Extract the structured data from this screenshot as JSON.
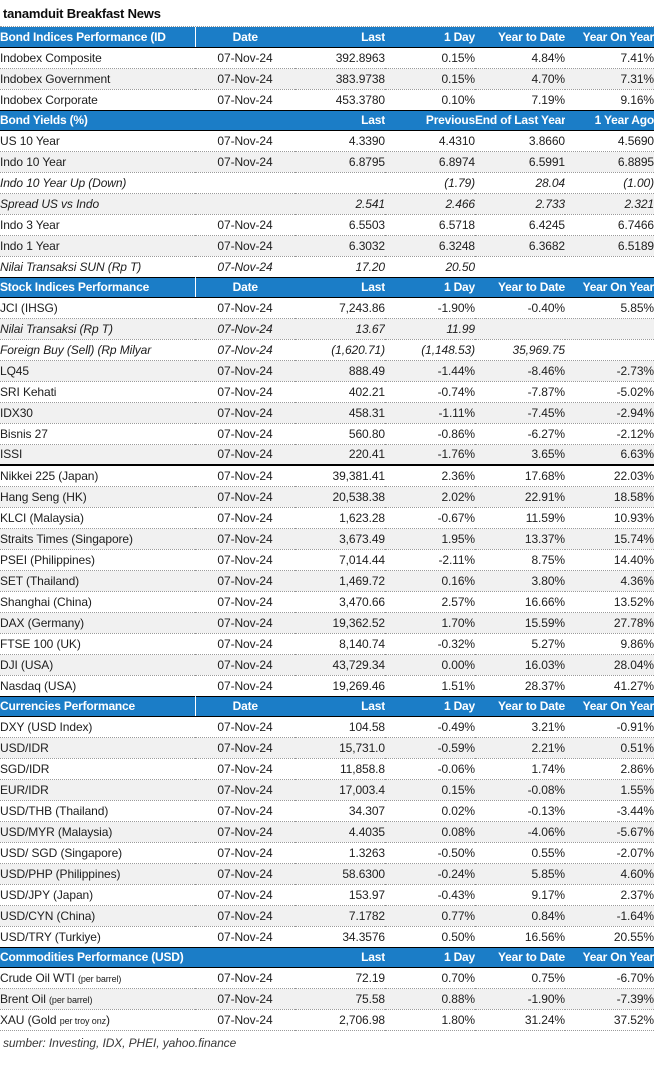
{
  "title": "tanamduit Breakfast News",
  "footer": "sumber: Investing, IDX, PHEI, yahoo.finance",
  "colors": {
    "header_bg": "#1b7dc7",
    "header_text": "#ffffff",
    "stripe": "#f1f1f1",
    "dotted_border": "#9a9a9a",
    "solid_border": "#000000"
  },
  "date_shown": "07-Nov-24",
  "sections": [
    {
      "id": "bond-indices",
      "header": [
        "Bond Indices Performance (ID",
        "Date",
        "Last",
        "1 Day",
        "Year to Date",
        "Year On Year"
      ],
      "rows": [
        {
          "label": "Indobex Composite",
          "cells": [
            "07-Nov-24",
            "392.8963",
            "0.15%",
            "4.84%",
            "7.41%"
          ]
        },
        {
          "label": "Indobex Government",
          "cells": [
            "07-Nov-24",
            "383.9738",
            "0.15%",
            "4.70%",
            "7.31%"
          ]
        },
        {
          "label": "Indobex Corporate",
          "cells": [
            "07-Nov-24",
            "453.3780",
            "0.10%",
            "7.19%",
            "9.16%"
          ]
        }
      ]
    },
    {
      "id": "bond-yields",
      "header": [
        "Bond Yields (%)",
        "",
        "Last",
        "Previous",
        "End of Last Year",
        "1 Year Ago"
      ],
      "rows": [
        {
          "label": "US 10 Year",
          "cells": [
            "07-Nov-24",
            "4.3390",
            "4.4310",
            "3.8660",
            "4.5690"
          ]
        },
        {
          "label": "Indo 10 Year",
          "cells": [
            "07-Nov-24",
            "6.8795",
            "6.8974",
            "6.5991",
            "6.8895"
          ]
        },
        {
          "label": "Indo 10 Year Up (Down)",
          "italic": true,
          "cells": [
            "",
            "",
            "(1.79)",
            "28.04",
            "(1.00)"
          ]
        },
        {
          "label": "Spread US vs Indo",
          "italic": true,
          "cells": [
            "",
            "2.541",
            "2.466",
            "2.733",
            "2.321"
          ]
        },
        {
          "label": "Indo 3 Year",
          "cells": [
            "07-Nov-24",
            "6.5503",
            "6.5718",
            "6.4245",
            "6.7466"
          ]
        },
        {
          "label": "Indo 1 Year",
          "cells": [
            "07-Nov-24",
            "6.3032",
            "6.3248",
            "6.3682",
            "6.5189"
          ]
        },
        {
          "label": "Nilai Transaksi SUN (Rp T)",
          "italic": true,
          "cells": [
            "07-Nov-24",
            "17.20",
            "20.50",
            "",
            ""
          ]
        }
      ]
    },
    {
      "id": "stock-indices",
      "header": [
        "Stock Indices Performance",
        "Date",
        "Last",
        "1 Day",
        "Year to Date",
        "Year On Year"
      ],
      "rows": [
        {
          "label": "JCI (IHSG)",
          "cells": [
            "07-Nov-24",
            "7,243.86",
            "-1.90%",
            "-0.40%",
            "5.85%"
          ]
        },
        {
          "label": "Nilai Transaksi (Rp T)",
          "italic": true,
          "cells": [
            "07-Nov-24",
            "13.67",
            "11.99",
            "",
            ""
          ]
        },
        {
          "label": "Foreign Buy (Sell) (Rp Milyar",
          "italic": true,
          "cells": [
            "07-Nov-24",
            "(1,620.71)",
            "(1,148.53)",
            "35,969.75",
            ""
          ]
        },
        {
          "label": "LQ45",
          "cells": [
            "07-Nov-24",
            "888.49",
            "-1.44%",
            "-8.46%",
            "-2.73%"
          ]
        },
        {
          "label": "SRI Kehati",
          "cells": [
            "07-Nov-24",
            "402.21",
            "-0.74%",
            "-7.87%",
            "-5.02%"
          ]
        },
        {
          "label": "IDX30",
          "cells": [
            "07-Nov-24",
            "458.31",
            "-1.11%",
            "-7.45%",
            "-2.94%"
          ]
        },
        {
          "label": "Bisnis 27",
          "cells": [
            "07-Nov-24",
            "560.80",
            "-0.86%",
            "-6.27%",
            "-2.12%"
          ]
        },
        {
          "label": "ISSI",
          "solid_bottom": true,
          "cells": [
            "07-Nov-24",
            "220.41",
            "-1.76%",
            "3.65%",
            "6.63%"
          ]
        },
        {
          "label": "Nikkei 225 (Japan)",
          "cells": [
            "07-Nov-24",
            "39,381.41",
            "2.36%",
            "17.68%",
            "22.03%"
          ]
        },
        {
          "label": "Hang Seng (HK)",
          "cells": [
            "07-Nov-24",
            "20,538.38",
            "2.02%",
            "22.91%",
            "18.58%"
          ]
        },
        {
          "label": "KLCI (Malaysia)",
          "cells": [
            "07-Nov-24",
            "1,623.28",
            "-0.67%",
            "11.59%",
            "10.93%"
          ]
        },
        {
          "label": "Straits Times (Singapore)",
          "cells": [
            "07-Nov-24",
            "3,673.49",
            "1.95%",
            "13.37%",
            "15.74%"
          ]
        },
        {
          "label": "PSEI (Philippines)",
          "cells": [
            "07-Nov-24",
            "7,014.44",
            "-2.11%",
            "8.75%",
            "14.40%"
          ]
        },
        {
          "label": "SET (Thailand)",
          "cells": [
            "07-Nov-24",
            "1,469.72",
            "0.16%",
            "3.80%",
            "4.36%"
          ]
        },
        {
          "label": "Shanghai (China)",
          "cells": [
            "07-Nov-24",
            "3,470.66",
            "2.57%",
            "16.66%",
            "13.52%"
          ]
        },
        {
          "label": "DAX (Germany)",
          "cells": [
            "07-Nov-24",
            "19,362.52",
            "1.70%",
            "15.59%",
            "27.78%"
          ]
        },
        {
          "label": "FTSE 100 (UK)",
          "cells": [
            "07-Nov-24",
            "8,140.74",
            "-0.32%",
            "5.27%",
            "9.86%"
          ]
        },
        {
          "label": "DJI (USA)",
          "cells": [
            "07-Nov-24",
            "43,729.34",
            "0.00%",
            "16.03%",
            "28.04%"
          ]
        },
        {
          "label": "Nasdaq (USA)",
          "cells": [
            "07-Nov-24",
            "19,269.46",
            "1.51%",
            "28.37%",
            "41.27%"
          ]
        }
      ]
    },
    {
      "id": "currencies",
      "header": [
        "Currencies Performance",
        "Date",
        "Last",
        "1 Day",
        "Year to Date",
        "Year On Year"
      ],
      "rows": [
        {
          "label": "DXY (USD Index)",
          "cells": [
            "07-Nov-24",
            "104.58",
            "-0.49%",
            "3.21%",
            "-0.91%"
          ]
        },
        {
          "label": "USD/IDR",
          "cells": [
            "07-Nov-24",
            "15,731.0",
            "-0.59%",
            "2.21%",
            "0.51%"
          ]
        },
        {
          "label": "SGD/IDR",
          "cells": [
            "07-Nov-24",
            "11,858.8",
            "-0.06%",
            "1.74%",
            "2.86%"
          ]
        },
        {
          "label": "EUR/IDR",
          "cells": [
            "07-Nov-24",
            "17,003.4",
            "0.15%",
            "-0.08%",
            "1.55%"
          ]
        },
        {
          "label": "USD/THB (Thailand)",
          "cells": [
            "07-Nov-24",
            "34.307",
            "0.02%",
            "-0.13%",
            "-3.44%"
          ]
        },
        {
          "label": "USD/MYR (Malaysia)",
          "cells": [
            "07-Nov-24",
            "4.4035",
            "0.08%",
            "-4.06%",
            "-5.67%"
          ]
        },
        {
          "label": "USD/ SGD (Singapore)",
          "cells": [
            "07-Nov-24",
            "1.3263",
            "-0.50%",
            "0.55%",
            "-2.07%"
          ]
        },
        {
          "label": "USD/PHP (Philippines)",
          "cells": [
            "07-Nov-24",
            "58.6300",
            "-0.24%",
            "5.85%",
            "4.60%"
          ]
        },
        {
          "label": "USD/JPY (Japan)",
          "cells": [
            "07-Nov-24",
            "153.97",
            "-0.43%",
            "9.17%",
            "2.37%"
          ]
        },
        {
          "label": "USD/CYN (China)",
          "cells": [
            "07-Nov-24",
            "7.1782",
            "0.77%",
            "0.84%",
            "-1.64%"
          ]
        },
        {
          "label": "USD/TRY (Turkiye)",
          "cells": [
            "07-Nov-24",
            "34.3576",
            "0.50%",
            "16.56%",
            "20.55%"
          ]
        }
      ]
    },
    {
      "id": "commodities",
      "header": [
        "Commodities Performance (USD)",
        "",
        "Last",
        "1 Day",
        "Year to Date",
        "Year On Year"
      ],
      "rows": [
        {
          "label": "Crude Oil WTI ",
          "label_small": "(per barrel)",
          "label_end": "",
          "cells": [
            "07-Nov-24",
            "72.19",
            "0.70%",
            "0.75%",
            "-6.70%"
          ]
        },
        {
          "label": "Brent Oil ",
          "label_small": "(per barrel)",
          "label_end": "",
          "cells": [
            "07-Nov-24",
            "75.58",
            "0.88%",
            "-1.90%",
            "-7.39%"
          ]
        },
        {
          "label": "XAU (Gold ",
          "label_small": "per troy onz",
          "label_end": ")",
          "cells": [
            "07-Nov-24",
            "2,706.98",
            "1.80%",
            "31.24%",
            "37.52%"
          ]
        }
      ]
    }
  ]
}
